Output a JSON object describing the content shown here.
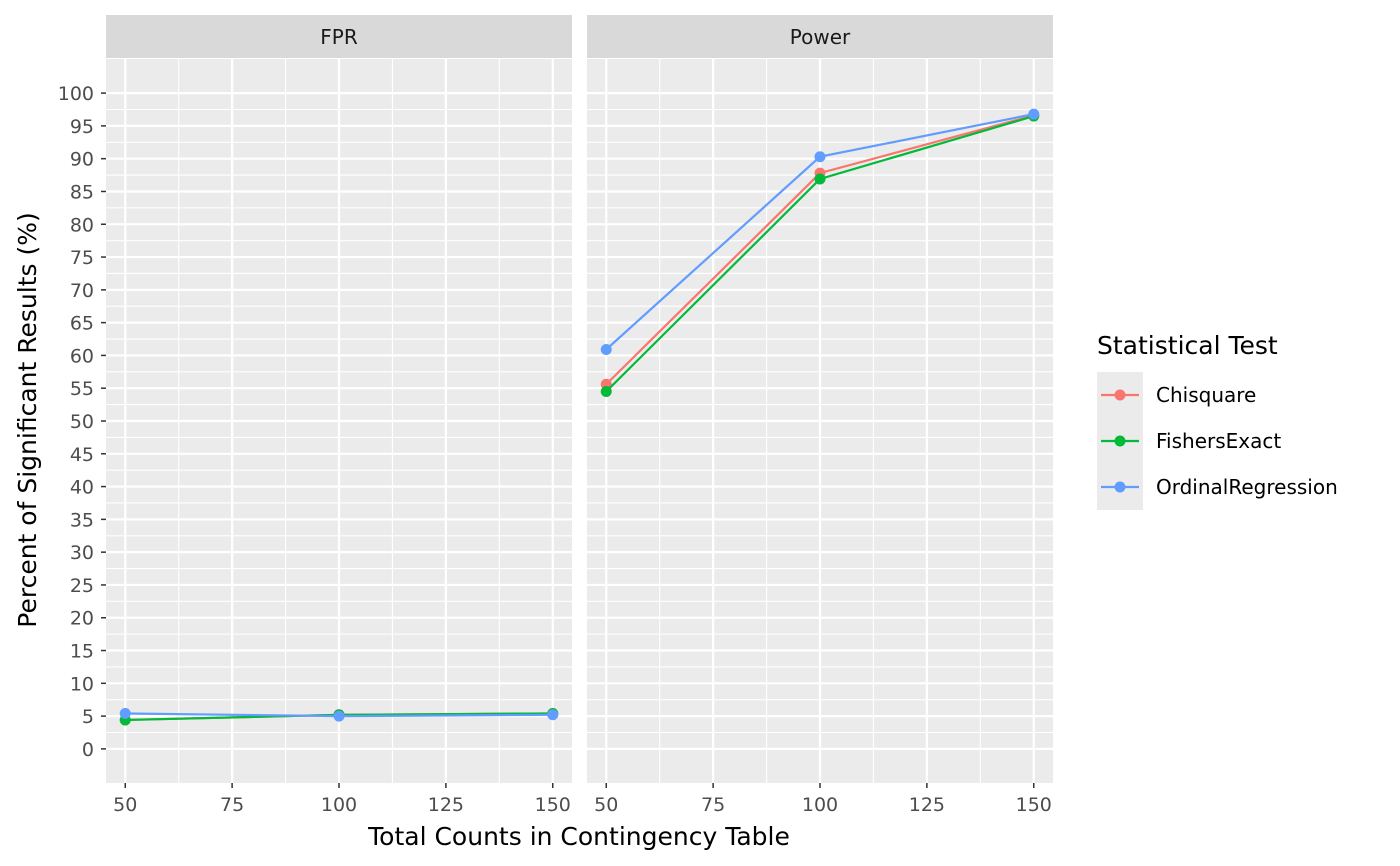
{
  "chart_data": {
    "type": "line",
    "facets": [
      "FPR",
      "Power"
    ],
    "x": [
      50,
      100,
      150
    ],
    "xlabel": "Total Counts in Contingency Table",
    "ylabel": "Percent of Significant Results (%)",
    "xlim": [
      45.5,
      154.5
    ],
    "ylim": [
      -5.2,
      105.2
    ],
    "xticks": [
      50,
      75,
      100,
      125,
      150
    ],
    "yticks": [
      0,
      5,
      10,
      15,
      20,
      25,
      30,
      35,
      40,
      45,
      50,
      55,
      60,
      65,
      70,
      75,
      80,
      85,
      90,
      95,
      100
    ],
    "grid": true,
    "legend": {
      "title": "Statistical Test",
      "placement": "right"
    },
    "series": [
      {
        "name": "Chisquare",
        "color": "#F8766D",
        "values": {
          "FPR": [
            4.4,
            5.2,
            5.4
          ],
          "Power": [
            55.6,
            87.8,
            96.6
          ]
        }
      },
      {
        "name": "FishersExact",
        "color": "#00BA38",
        "values": {
          "FPR": [
            4.4,
            5.2,
            5.4
          ],
          "Power": [
            54.5,
            86.9,
            96.5
          ]
        }
      },
      {
        "name": "OrdinalRegression",
        "color": "#619CFF",
        "values": {
          "FPR": [
            5.4,
            5.0,
            5.2
          ],
          "Power": [
            60.9,
            90.3,
            96.8
          ]
        }
      }
    ]
  }
}
